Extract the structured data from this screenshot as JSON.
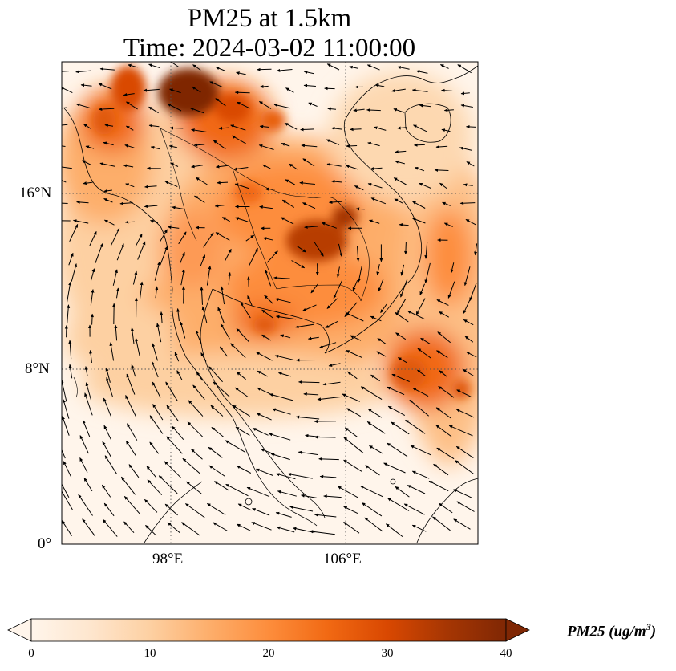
{
  "title_line1": "PM25 at 1.5km",
  "title_line2": "Time: 2024-03-02 11:00:00",
  "lat_ticks": [
    "16°N",
    "8°N",
    "0°"
  ],
  "lon_ticks": [
    "98°E",
    "106°E"
  ],
  "colorbar": {
    "label_main": "PM25 (ug/m",
    "label_sup": "3",
    "label_end": ")",
    "ticks": [
      "0",
      "10",
      "20",
      "30",
      "40"
    ],
    "colors": [
      "#fff5eb",
      "#fee6ce",
      "#fdd0a2",
      "#fdae6b",
      "#fd8d3c",
      "#f16913",
      "#d94801",
      "#a63603",
      "#7f2704"
    ]
  },
  "chart_data": {
    "type": "heatmap",
    "title": "PM25 at 1.5km\nTime: 2024-03-02 11:00:00",
    "variable": "PM25",
    "units": "ug/m3",
    "value_range": [
      0,
      40
    ],
    "lon_range": [
      93,
      112
    ],
    "lat_range": [
      0,
      22
    ],
    "gridlines": true,
    "wind_vectors": true
  }
}
